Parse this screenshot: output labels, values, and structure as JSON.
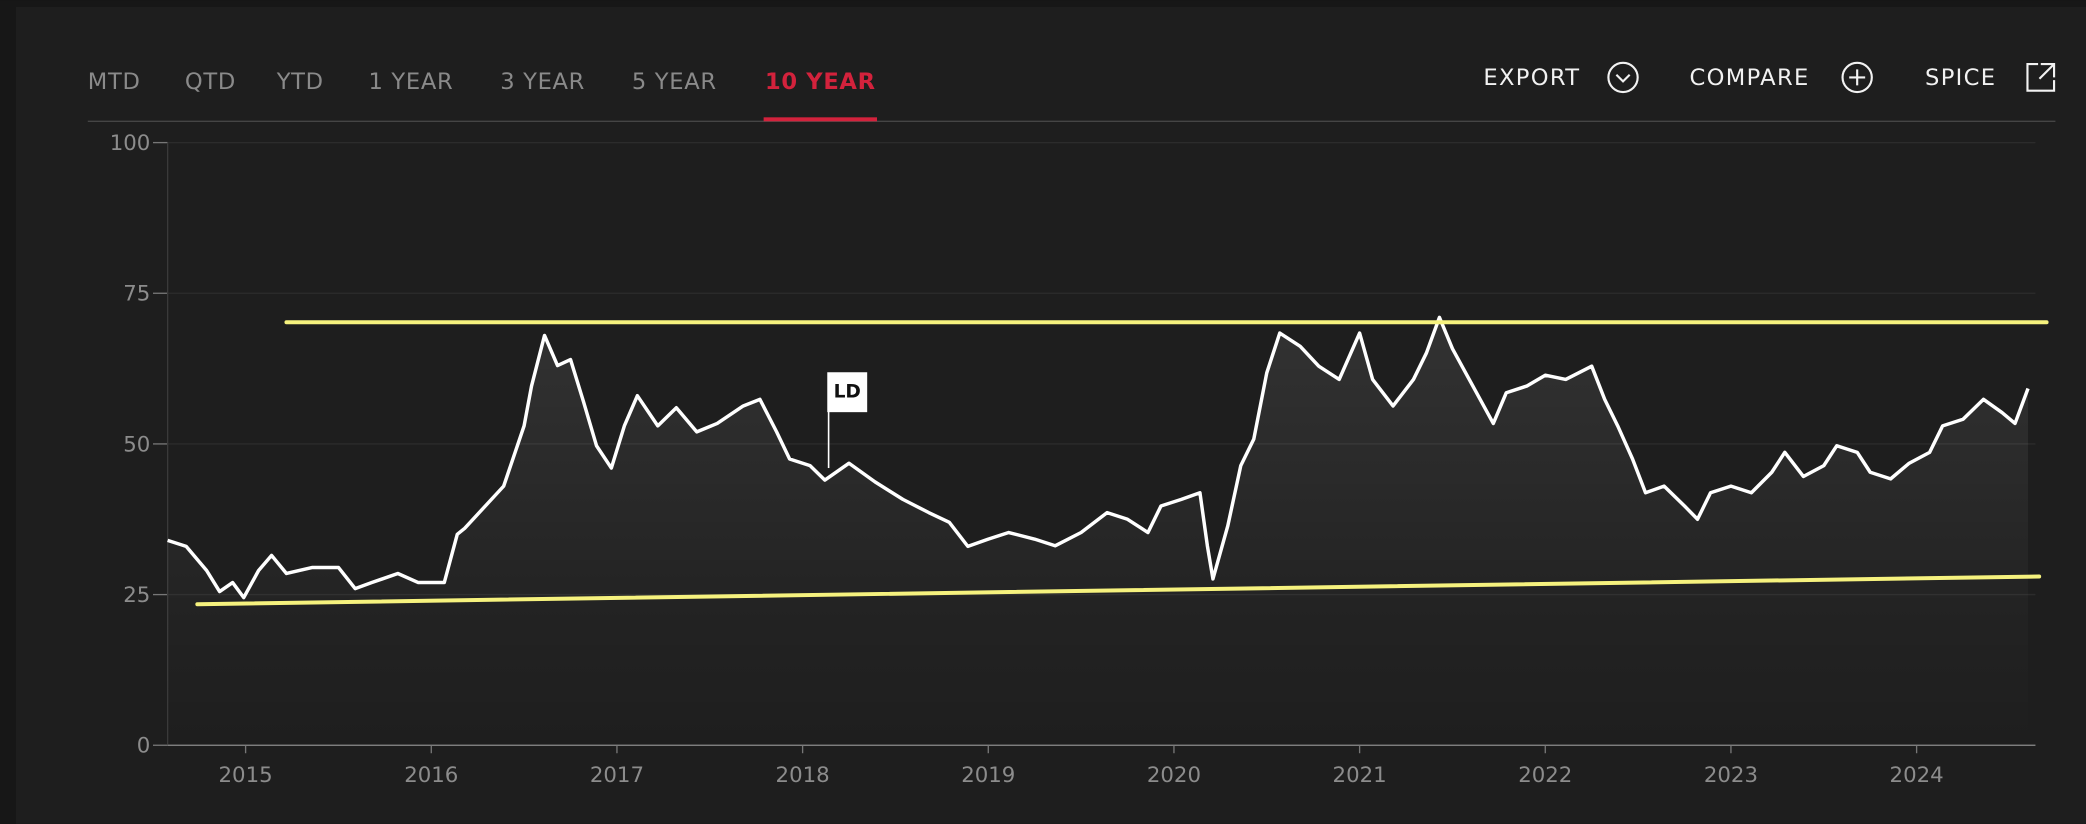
{
  "tabs": [
    {
      "label": "MTD",
      "active": false
    },
    {
      "label": "QTD",
      "active": false
    },
    {
      "label": "YTD",
      "active": false
    },
    {
      "label": "1 YEAR",
      "active": false
    },
    {
      "label": "3 YEAR",
      "active": false
    },
    {
      "label": "5 YEAR",
      "active": false
    },
    {
      "label": "10 YEAR",
      "active": true
    }
  ],
  "actions": [
    {
      "label": "EXPORT"
    },
    {
      "label": "COMPARE"
    },
    {
      "label": "SPICE"
    }
  ],
  "chart_data": {
    "type": "line",
    "color": "#ffffff",
    "x": [
      2014.58,
      2014.68,
      2014.79,
      2014.86,
      2014.93,
      2014.99,
      2015.07,
      2015.14,
      2015.22,
      2015.36,
      2015.5,
      2015.59,
      2015.68,
      2015.82,
      2015.93,
      2016.07,
      2016.14,
      2016.18,
      2016.39,
      2016.5,
      2016.54,
      2016.61,
      2016.68,
      2016.75,
      2016.82,
      2016.89,
      2016.97,
      2017.04,
      2017.11,
      2017.22,
      2017.32,
      2017.43,
      2017.54,
      2017.68,
      2017.77,
      2017.86,
      2017.93,
      2018.04,
      2018.12,
      2018.25,
      2018.39,
      2018.54,
      2018.68,
      2018.79,
      2018.89,
      2019.0,
      2019.11,
      2019.25,
      2019.36,
      2019.5,
      2019.64,
      2019.75,
      2019.86,
      2019.93,
      2020.04,
      2020.14,
      2020.18,
      2020.21,
      2020.29,
      2020.36,
      2020.43,
      2020.5,
      2020.57,
      2020.68,
      2020.78,
      2020.89,
      2021.0,
      2021.07,
      2021.18,
      2021.29,
      2021.36,
      2021.43,
      2021.5,
      2021.61,
      2021.72,
      2021.79,
      2021.9,
      2022.0,
      2022.11,
      2022.25,
      2022.32,
      2022.39,
      2022.47,
      2022.54,
      2022.64,
      2022.75,
      2022.82,
      2022.89,
      2023.0,
      2023.11,
      2023.22,
      2023.29,
      2023.39,
      2023.5,
      2023.57,
      2023.68,
      2023.75,
      2023.86,
      2023.96,
      2024.07,
      2024.14,
      2024.25,
      2024.36,
      2024.46,
      2024.53,
      2024.6
    ],
    "values": [
      34,
      33,
      29,
      25.5,
      27,
      24.5,
      29,
      31.5,
      28.5,
      29.5,
      29.5,
      26,
      27,
      28.5,
      27,
      27,
      35,
      36,
      43,
      53,
      59.6,
      68,
      63,
      64,
      57,
      49.7,
      46,
      53,
      58,
      53,
      56,
      52,
      53.4,
      56.3,
      57.4,
      52,
      47.5,
      46.4,
      44,
      46.8,
      43.7,
      40.8,
      38.6,
      37,
      33,
      34.2,
      35.3,
      34.2,
      33.1,
      35.3,
      38.6,
      37.5,
      35.3,
      39.7,
      40.8,
      41.9,
      33.1,
      27.6,
      36.4,
      46.4,
      50.8,
      61.8,
      68.4,
      66.2,
      62.9,
      60.7,
      68.4,
      60.7,
      56.3,
      60.7,
      65.1,
      71,
      65.8,
      59.6,
      53.4,
      58.5,
      59.6,
      61.4,
      60.7,
      62.9,
      57.4,
      53,
      47.5,
      41.9,
      43,
      39.7,
      37.5,
      41.9,
      43,
      41.9,
      45.3,
      48.6,
      44.6,
      46.4,
      49.7,
      48.6,
      45.3,
      44.2,
      46.8,
      48.6,
      53,
      54.1,
      57.4,
      55.2,
      53.4,
      59.2
    ],
    "xlim": [
      2014.58,
      2024.64
    ],
    "ylim": [
      0,
      100
    ],
    "xticks": [
      2015,
      2016,
      2017,
      2018,
      2019,
      2020,
      2021,
      2022,
      2023,
      2024
    ],
    "yticks": [
      0,
      25,
      50,
      75,
      100
    ],
    "grid": true,
    "trend_lines": [
      {
        "x": [
          2015.22,
          2024.7
        ],
        "y": [
          70.2,
          70.2
        ],
        "color": "#f6f27e"
      },
      {
        "x": [
          2014.74,
          2024.66
        ],
        "y": [
          23.4,
          28.0
        ],
        "color": "#f6f27e"
      }
    ],
    "flags": [
      {
        "x": 2018.14,
        "y": 46,
        "label": "LD"
      }
    ]
  }
}
